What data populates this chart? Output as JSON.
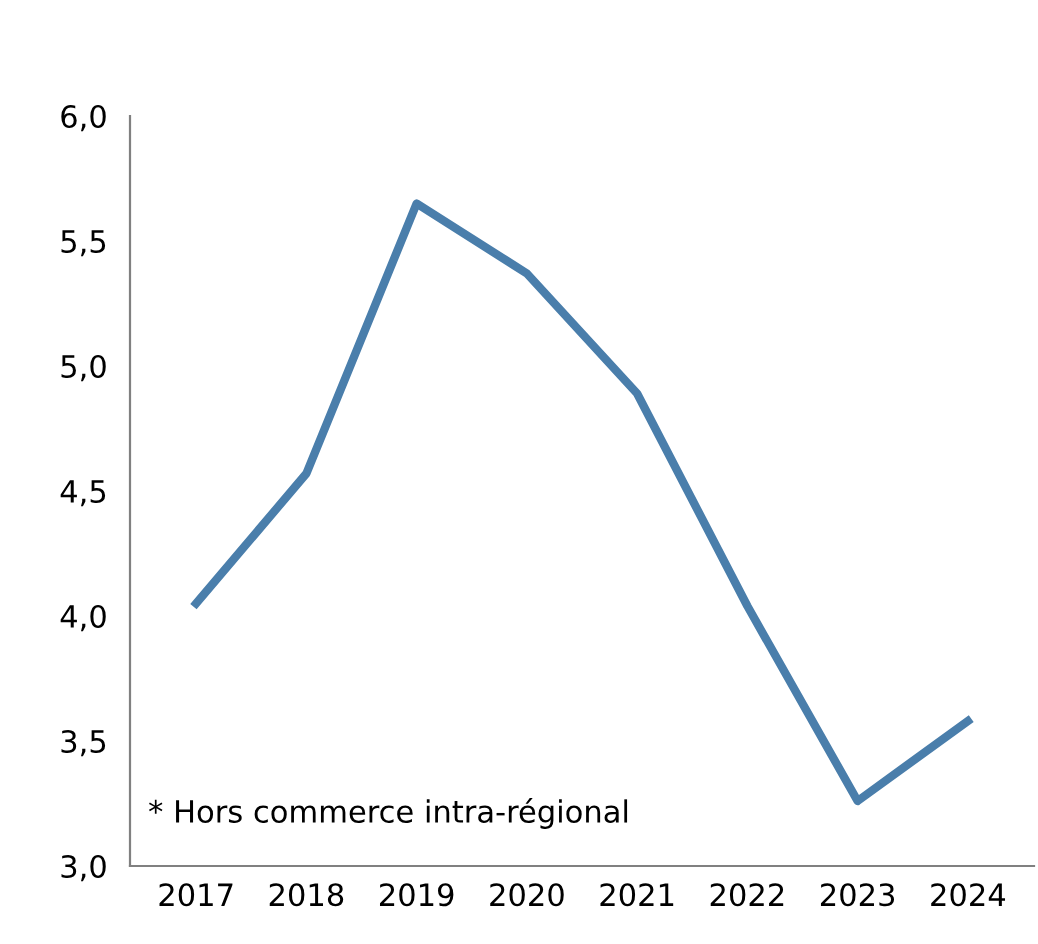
{
  "chart_data": {
    "type": "line",
    "categories": [
      "2017",
      "2018",
      "2019",
      "2020",
      "2021",
      "2022",
      "2023",
      "2024"
    ],
    "series": [
      {
        "color": "#4a7eab",
        "values": [
          4.05,
          4.57,
          5.65,
          5.37,
          4.89,
          4.04,
          3.26,
          3.58
        ]
      }
    ],
    "ylim": [
      3.0,
      6.0
    ],
    "yticks": [
      {
        "value": 3.0,
        "label": "3,0"
      },
      {
        "value": 3.5,
        "label": "3,5"
      },
      {
        "value": 4.0,
        "label": "4,0"
      },
      {
        "value": 4.5,
        "label": "4,5"
      },
      {
        "value": 5.0,
        "label": "5,0"
      },
      {
        "value": 5.5,
        "label": "5,5"
      },
      {
        "value": 6.0,
        "label": "6,0"
      }
    ],
    "annotations": [
      "* Hors commerce intra-régional"
    ],
    "grid": false,
    "legend": false,
    "marker": "none",
    "line_style": "solid"
  }
}
